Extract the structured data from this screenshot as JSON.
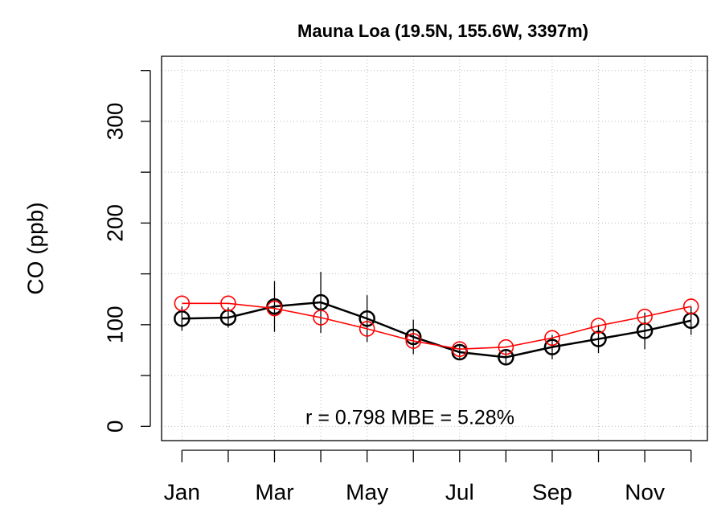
{
  "chart_data": {
    "type": "line",
    "title": "Mauna Loa (19.5N, 155.6W, 3397m)",
    "y_label": "CO (ppb)",
    "annotation": "r = 0.798 MBE = 5.28%",
    "categories": [
      "Jan",
      null,
      "Mar",
      null,
      "May",
      null,
      "Jul",
      null,
      "Sep",
      null,
      "Nov",
      null
    ],
    "xlim": [
      0.56,
      12.44
    ],
    "ylim": [
      -14,
      364
    ],
    "yticks": [
      0,
      100,
      200,
      300
    ],
    "yminor_ticks": [
      50,
      150,
      250,
      350
    ],
    "grid": true,
    "series": [
      {
        "color": "#000000",
        "values": [
          106,
          107,
          118,
          122,
          106,
          88,
          73,
          68,
          78,
          86,
          94,
          104
        ],
        "errors": [
          12,
          10,
          25,
          30,
          23,
          17,
          6,
          6,
          12,
          14,
          18,
          14
        ]
      },
      {
        "color": "#ff0000",
        "values": [
          121,
          121,
          116,
          107,
          96,
          84,
          76,
          78,
          87,
          99,
          108,
          118
        ]
      }
    ]
  }
}
